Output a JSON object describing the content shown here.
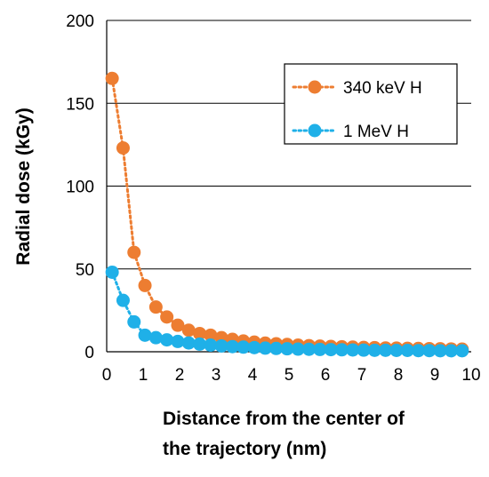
{
  "chart_data": {
    "type": "line",
    "title": "",
    "xlabel_lines": [
      "Distance from the center of",
      "the trajectory (nm)"
    ],
    "ylabel": "Radial dose (kGy)",
    "xlim": [
      0,
      10
    ],
    "ylim": [
      0,
      200
    ],
    "xticks": [
      0,
      1,
      2,
      3,
      4,
      5,
      6,
      7,
      8,
      9,
      10
    ],
    "yticks": [
      0,
      50,
      100,
      150,
      200
    ],
    "grid": "horizontal",
    "legend_position": "top-right",
    "series": [
      {
        "name": "340 keV H",
        "color": "#ED7D31",
        "line_style": "dotted",
        "marker": "circle",
        "x": [
          0.15,
          0.45,
          0.75,
          1.05,
          1.35,
          1.65,
          1.95,
          2.25,
          2.55,
          2.85,
          3.15,
          3.45,
          3.75,
          4.05,
          4.35,
          4.65,
          4.95,
          5.25,
          5.55,
          5.85,
          6.15,
          6.45,
          6.75,
          7.05,
          7.35,
          7.65,
          7.95,
          8.25,
          8.55,
          8.85,
          9.15,
          9.45,
          9.75
        ],
        "y": [
          165,
          123,
          60,
          40,
          27,
          21,
          16,
          13,
          11,
          10,
          8.5,
          7.5,
          6.5,
          5.8,
          5.2,
          4.8,
          4.4,
          4.0,
          3.7,
          3.4,
          3.2,
          3.0,
          2.8,
          2.6,
          2.5,
          2.3,
          2.2,
          2.1,
          2.0,
          1.9,
          1.8,
          1.7,
          1.6
        ]
      },
      {
        "name": "1 MeV H",
        "color": "#1FB0E8",
        "line_style": "dotted",
        "marker": "circle",
        "x": [
          0.15,
          0.45,
          0.75,
          1.05,
          1.35,
          1.65,
          1.95,
          2.25,
          2.55,
          2.85,
          3.15,
          3.45,
          3.75,
          4.05,
          4.35,
          4.65,
          4.95,
          5.25,
          5.55,
          5.85,
          6.15,
          6.45,
          6.75,
          7.05,
          7.35,
          7.65,
          7.95,
          8.25,
          8.55,
          8.85,
          9.15,
          9.45,
          9.75
        ],
        "y": [
          48,
          31,
          18,
          10,
          8.5,
          7.2,
          6.2,
          5.3,
          4.6,
          4.0,
          3.5,
          3.1,
          2.8,
          2.5,
          2.2,
          2.0,
          1.8,
          1.6,
          1.5,
          1.4,
          1.3,
          1.2,
          1.1,
          1.0,
          0.9,
          0.9,
          0.8,
          0.8,
          0.7,
          0.7,
          0.6,
          0.6,
          0.6
        ]
      }
    ]
  }
}
